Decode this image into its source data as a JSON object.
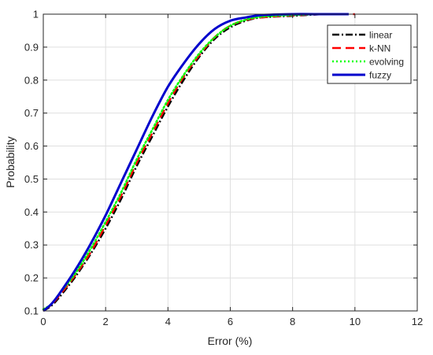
{
  "chart_data": {
    "type": "line",
    "title": "",
    "xlabel": "Error (%)",
    "ylabel": "Probability",
    "xlim": [
      0,
      12
    ],
    "ylim": [
      0.1,
      1
    ],
    "grid": true,
    "legend_position": "top-right",
    "xticks": [
      0,
      2,
      4,
      6,
      8,
      10,
      12
    ],
    "yticks": [
      0.1,
      0.2,
      0.3,
      0.4,
      0.5,
      0.6,
      0.7,
      0.8,
      0.9,
      1
    ],
    "series": [
      {
        "name": "linear",
        "color": "#000000",
        "style": "dash-dot",
        "x": [
          0,
          0.25,
          0.5,
          1,
          1.5,
          2,
          2.5,
          3,
          3.5,
          4,
          4.5,
          5,
          5.5,
          6,
          6.5,
          7,
          8,
          9,
          9.7
        ],
        "y": [
          0.1,
          0.115,
          0.14,
          0.2,
          0.27,
          0.35,
          0.44,
          0.54,
          0.63,
          0.72,
          0.8,
          0.87,
          0.925,
          0.96,
          0.98,
          0.99,
          0.995,
          1.0,
          1.0
        ]
      },
      {
        "name": "k-NN",
        "color": "#ff0000",
        "style": "dashed",
        "x": [
          0,
          0.25,
          0.5,
          1,
          1.5,
          2,
          2.5,
          3,
          3.5,
          4,
          4.5,
          5,
          5.5,
          6,
          6.5,
          7,
          8,
          9,
          10
        ],
        "y": [
          0.1,
          0.118,
          0.145,
          0.205,
          0.275,
          0.36,
          0.45,
          0.55,
          0.64,
          0.73,
          0.81,
          0.875,
          0.93,
          0.965,
          0.982,
          0.99,
          0.996,
          1.0,
          1.0
        ]
      },
      {
        "name": "evolving",
        "color": "#00ff00",
        "style": "dotted",
        "x": [
          0,
          0.25,
          0.5,
          1,
          1.5,
          2,
          2.5,
          3,
          3.5,
          4,
          4.5,
          5,
          5.5,
          6,
          6.5,
          7,
          8,
          9,
          9.8
        ],
        "y": [
          0.105,
          0.12,
          0.15,
          0.21,
          0.285,
          0.37,
          0.46,
          0.56,
          0.65,
          0.74,
          0.815,
          0.88,
          0.93,
          0.965,
          0.983,
          0.992,
          0.997,
          1.0,
          1.0
        ]
      },
      {
        "name": "fuzzy",
        "color": "#0000cc",
        "style": "solid",
        "x": [
          0,
          0.25,
          0.5,
          1,
          1.5,
          2,
          2.5,
          3,
          3.5,
          4,
          4.5,
          5,
          5.5,
          6,
          6.5,
          7,
          8,
          9,
          9.8
        ],
        "y": [
          0.1,
          0.12,
          0.15,
          0.22,
          0.3,
          0.39,
          0.49,
          0.59,
          0.69,
          0.78,
          0.85,
          0.91,
          0.955,
          0.98,
          0.99,
          0.997,
          1.0,
          1.0,
          1.0
        ]
      }
    ]
  }
}
